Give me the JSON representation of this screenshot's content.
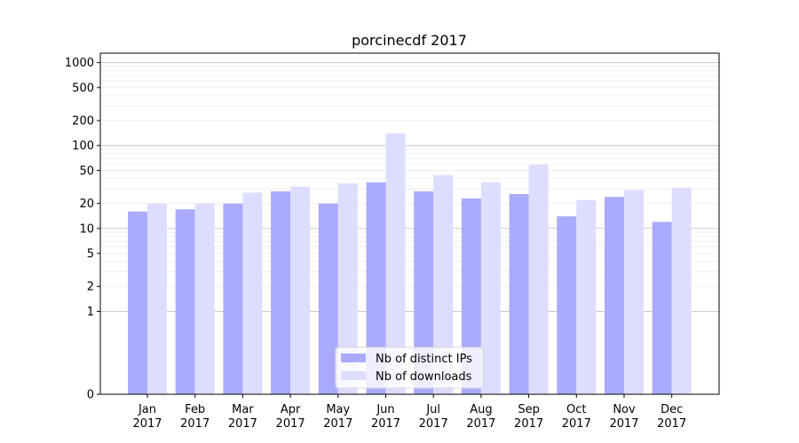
{
  "chart_data": {
    "type": "bar",
    "title": "porcinecdf 2017",
    "xlabel": "",
    "ylabel": "",
    "y_scale": "symlog",
    "ylim": [
      0,
      1300
    ],
    "y_ticks": [
      0,
      1,
      2,
      5,
      10,
      20,
      50,
      100,
      200,
      500,
      1000
    ],
    "grid": true,
    "legend_position": "bottom-center",
    "categories": [
      {
        "month": "Jan",
        "year": "2017"
      },
      {
        "month": "Feb",
        "year": "2017"
      },
      {
        "month": "Mar",
        "year": "2017"
      },
      {
        "month": "Apr",
        "year": "2017"
      },
      {
        "month": "May",
        "year": "2017"
      },
      {
        "month": "Jun",
        "year": "2017"
      },
      {
        "month": "Jul",
        "year": "2017"
      },
      {
        "month": "Aug",
        "year": "2017"
      },
      {
        "month": "Sep",
        "year": "2017"
      },
      {
        "month": "Oct",
        "year": "2017"
      },
      {
        "month": "Nov",
        "year": "2017"
      },
      {
        "month": "Dec",
        "year": "2017"
      }
    ],
    "series": [
      {
        "name": "Nb of distinct IPs",
        "color": "#aaaaff",
        "values": [
          16,
          17,
          20,
          28,
          20,
          36,
          28,
          23,
          26,
          14,
          24,
          12
        ]
      },
      {
        "name": "Nb of downloads",
        "color": "#ddddff",
        "values": [
          20,
          20,
          27,
          32,
          35,
          140,
          44,
          36,
          59,
          22,
          29,
          31
        ]
      }
    ]
  }
}
